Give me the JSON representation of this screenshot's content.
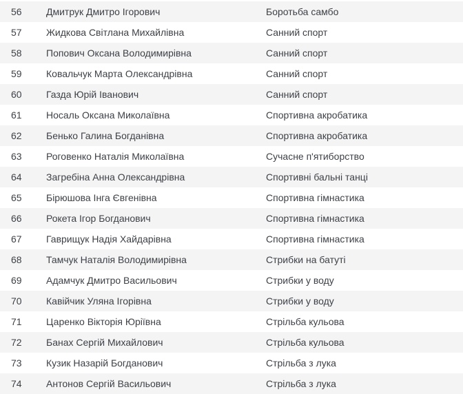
{
  "colors": {
    "striped_row_background": "#f4f4f4",
    "plain_row_background": "#ffffff",
    "text": "#3d4147"
  },
  "table": {
    "columns": [
      "number",
      "athlete_name",
      "sport"
    ],
    "first_row_striped": true,
    "rows": [
      {
        "number": "56",
        "name": "Дмитрук Дмитро Ігорович",
        "sport": "Боротьба самбо"
      },
      {
        "number": "57",
        "name": "Жидкова Світлана Михайлівна",
        "sport": "Санний спорт"
      },
      {
        "number": "58",
        "name": "Попович Оксана Володимирівна",
        "sport": "Санний спорт"
      },
      {
        "number": "59",
        "name": "Ковальчук Марта Олександрівна",
        "sport": "Санний спорт"
      },
      {
        "number": "60",
        "name": "Газда Юрій Іванович",
        "sport": "Санний спорт"
      },
      {
        "number": "61",
        "name": "Носаль Оксана Миколаївна",
        "sport": "Спортивна акробатика"
      },
      {
        "number": "62",
        "name": "Бенько Галина Богданівна",
        "sport": "Спортивна акробатика"
      },
      {
        "number": "63",
        "name": "Роговенко Наталія Миколаївна",
        "sport": "Сучасне п'ятиборство"
      },
      {
        "number": "64",
        "name": "Загребіна Анна Олександрівна",
        "sport": "Спортивні бальні танці"
      },
      {
        "number": "65",
        "name": "Бірюшова Інга Євгенівна",
        "sport": "Спортивна гімнастика"
      },
      {
        "number": "66",
        "name": "Рокета Ігор Богданович",
        "sport": "Спортивна гімнастика"
      },
      {
        "number": "67",
        "name": "Гаврищук Надія Хайдарівна",
        "sport": "Спортивна гімнастика"
      },
      {
        "number": "68",
        "name": "Тамчук Наталія Володимирівна",
        "sport": "Стрибки на батуті"
      },
      {
        "number": "69",
        "name": "Адамчук Дмитро Васильович",
        "sport": "Стрибки у воду"
      },
      {
        "number": "70",
        "name": "Кавійчик Уляна Ігорівна",
        "sport": "Стрибки у воду"
      },
      {
        "number": "71",
        "name": "Царенко Вікторія Юріївна",
        "sport": "Стрільба кульова"
      },
      {
        "number": "72",
        "name": "Банах Сергій Михайлович",
        "sport": "Стрільба кульова"
      },
      {
        "number": "73",
        "name": "Кузик Назарій Богданович",
        "sport": "Стрільба з лука"
      },
      {
        "number": "74",
        "name": "Антонов Сергій Васильович",
        "sport": "Стрільба з лука"
      }
    ]
  }
}
